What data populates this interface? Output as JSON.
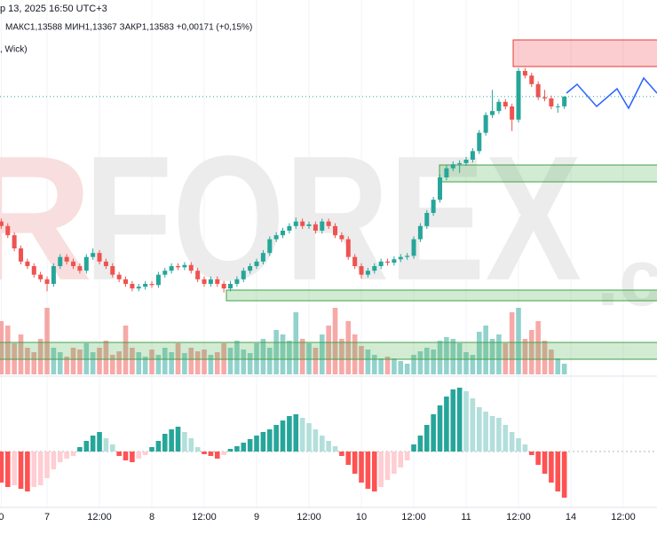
{
  "header": {
    "date": "р 13, 2025 16:50 UTC+3",
    "ohlc": "МАКС1,13588  МИН1,13367  ЗАКР1,13583  +0,00171 (+0,15%)",
    "style": ", Wick)"
  },
  "watermark": {
    "lead": "R",
    "main": "FOREX",
    "tail": ".c"
  },
  "chart_data": {
    "type": "candlestick",
    "up_color": "#26a69a",
    "down_color": "#ef5350",
    "categories": [
      "0",
      null,
      null,
      null,
      null,
      null,
      null,
      "7",
      null,
      null,
      null,
      null,
      null,
      null,
      null,
      "12:00",
      null,
      null,
      null,
      null,
      null,
      null,
      null,
      "8",
      null,
      null,
      null,
      null,
      null,
      null,
      null,
      "12:00",
      null,
      null,
      null,
      null,
      null,
      null,
      null,
      "9",
      null,
      null,
      null,
      null,
      null,
      null,
      null,
      "12:00",
      null,
      null,
      null,
      null,
      null,
      null,
      null,
      "10",
      null,
      null,
      null,
      null,
      null,
      null,
      null,
      "12:00",
      null,
      null,
      null,
      null,
      null,
      null,
      null,
      "11",
      null,
      null,
      null,
      null,
      null,
      null,
      null,
      "12:00",
      null,
      null,
      null,
      null,
      null,
      null,
      null,
      "14",
      null,
      null,
      null,
      null,
      null,
      null,
      null,
      "12:00"
    ],
    "open": [
      1.114,
      1.1132,
      1.1116,
      1.1093,
      1.107,
      1.1062,
      1.1047,
      1.1039,
      1.1031,
      1.1062,
      1.1078,
      1.107,
      1.1062,
      1.1054,
      1.1078,
      1.1085,
      1.107,
      1.1062,
      1.1047,
      1.1039,
      1.1031,
      1.1023,
      1.1026,
      1.1031,
      1.1029,
      1.1047,
      1.1054,
      1.1062,
      1.106,
      1.1064,
      1.1054,
      1.1039,
      1.1031,
      1.1039,
      1.1031,
      1.1023,
      1.1031,
      1.1039,
      1.1054,
      1.1062,
      1.107,
      1.1085,
      1.1109,
      1.1116,
      1.1124,
      1.1132,
      1.114,
      1.1132,
      1.1135,
      1.1124,
      1.114,
      1.1132,
      1.1116,
      1.1109,
      1.1078,
      1.1062,
      1.1047,
      1.1054,
      1.1062,
      1.107,
      1.1068,
      1.1074,
      1.1078,
      1.108,
      1.1109,
      1.1132,
      1.1155,
      1.1178,
      1.1217,
      1.1233,
      1.124,
      1.1242,
      1.1248,
      1.1263,
      1.1295,
      1.1326,
      1.1333,
      1.1349,
      1.1341,
      1.1318,
      1.1403,
      1.1395,
      1.138,
      1.1357,
      1.1355,
      1.1341,
      1.13412,
      null,
      null,
      null,
      null,
      null,
      null,
      null,
      null,
      null
    ],
    "high": [
      1.1145,
      1.1137,
      1.1121,
      1.1098,
      1.1075,
      1.1067,
      1.1052,
      1.1044,
      1.1067,
      1.1083,
      1.1083,
      1.1075,
      1.1067,
      1.1083,
      1.1093,
      1.109,
      1.1075,
      1.1067,
      1.1052,
      1.1044,
      1.1036,
      1.1031,
      1.1036,
      1.1036,
      1.1052,
      1.1059,
      1.1067,
      1.1067,
      1.1069,
      1.1069,
      1.1059,
      1.1044,
      1.1044,
      1.1044,
      1.1036,
      1.1036,
      1.1044,
      1.1059,
      1.1067,
      1.1075,
      1.109,
      1.1114,
      1.1121,
      1.1129,
      1.1137,
      1.1147,
      1.1145,
      1.114,
      1.114,
      1.1145,
      1.1145,
      1.1137,
      1.1121,
      1.1114,
      1.1083,
      1.1067,
      1.1059,
      1.1067,
      1.1075,
      1.1075,
      1.1079,
      1.1083,
      1.1085,
      1.1114,
      1.1137,
      1.116,
      1.1183,
      1.1222,
      1.1238,
      1.1245,
      1.1247,
      1.1253,
      1.1268,
      1.13,
      1.1331,
      1.137,
      1.1354,
      1.1354,
      1.1346,
      1.1408,
      1.1408,
      1.14,
      1.1385,
      1.137,
      1.136,
      1.1346,
      1.13588,
      null,
      null,
      null,
      null,
      null,
      null,
      null,
      null,
      null
    ],
    "low": [
      1.1127,
      1.1111,
      1.1088,
      1.1065,
      1.1057,
      1.1042,
      1.1034,
      1.1018,
      1.1026,
      1.1057,
      1.1065,
      1.1057,
      1.1049,
      1.1049,
      1.1073,
      1.1065,
      1.1057,
      1.1042,
      1.1034,
      1.1026,
      1.1018,
      1.1018,
      1.1021,
      1.1024,
      1.1024,
      1.1042,
      1.1049,
      1.1055,
      1.1055,
      1.1049,
      1.1034,
      1.1026,
      1.1026,
      1.1026,
      1.1016,
      1.1018,
      1.1026,
      1.1034,
      1.1049,
      1.1057,
      1.1065,
      1.108,
      1.1104,
      1.1111,
      1.1119,
      1.1127,
      1.1127,
      1.1127,
      1.1119,
      1.1119,
      1.1127,
      1.1111,
      1.1104,
      1.1073,
      1.1057,
      1.104,
      1.1042,
      1.1049,
      1.1057,
      1.1063,
      1.1063,
      1.1069,
      1.1073,
      1.1075,
      1.1104,
      1.1127,
      1.115,
      1.1173,
      1.1212,
      1.1228,
      1.1225,
      1.1237,
      1.1243,
      1.1258,
      1.129,
      1.1321,
      1.1328,
      1.1336,
      1.1298,
      1.1313,
      1.139,
      1.1375,
      1.1352,
      1.135,
      1.1336,
      1.133,
      1.13367,
      null,
      null,
      null,
      null,
      null,
      null,
      null,
      null,
      null
    ],
    "close": [
      1.1132,
      1.1116,
      1.1093,
      1.107,
      1.1062,
      1.1047,
      1.1039,
      1.1031,
      1.1062,
      1.1078,
      1.107,
      1.1062,
      1.1054,
      1.1078,
      1.1085,
      1.107,
      1.1062,
      1.1047,
      1.1039,
      1.1031,
      1.1023,
      1.1026,
      1.1031,
      1.1029,
      1.1047,
      1.1054,
      1.1062,
      1.106,
      1.1064,
      1.1054,
      1.1039,
      1.1031,
      1.1039,
      1.1031,
      1.1023,
      1.1031,
      1.1039,
      1.1054,
      1.1062,
      1.107,
      1.1085,
      1.1109,
      1.1116,
      1.1124,
      1.1132,
      1.114,
      1.1132,
      1.1135,
      1.1124,
      1.114,
      1.1132,
      1.1116,
      1.1109,
      1.1078,
      1.1062,
      1.1047,
      1.1054,
      1.1062,
      1.107,
      1.1068,
      1.1074,
      1.1078,
      1.108,
      1.1109,
      1.1132,
      1.1155,
      1.1178,
      1.1217,
      1.1233,
      1.124,
      1.1242,
      1.1248,
      1.1263,
      1.1295,
      1.1326,
      1.1333,
      1.1349,
      1.1341,
      1.1318,
      1.1403,
      1.1395,
      1.138,
      1.1357,
      1.1355,
      1.1341,
      1.13412,
      1.13583,
      null,
      null,
      null,
      null,
      null,
      null,
      null,
      null,
      null
    ],
    "ylim": [
      1.1,
      1.1465
    ],
    "volume": [
      60,
      55,
      35,
      45,
      30,
      25,
      40,
      75,
      30,
      25,
      20,
      30,
      28,
      35,
      25,
      30,
      38,
      22,
      26,
      55,
      30,
      25,
      20,
      28,
      22,
      30,
      25,
      35,
      24,
      30,
      26,
      28,
      22,
      25,
      35,
      30,
      38,
      28,
      24,
      35,
      40,
      30,
      50,
      45,
      38,
      70,
      40,
      35,
      30,
      45,
      55,
      75,
      40,
      60,
      45,
      32,
      28,
      22,
      18,
      20,
      18,
      15,
      12,
      22,
      26,
      30,
      28,
      38,
      42,
      40,
      35,
      25,
      22,
      48,
      55,
      40,
      45,
      35,
      70,
      75,
      40,
      50,
      60,
      38,
      28,
      18,
      12,
      null,
      null,
      null,
      null,
      null,
      null,
      null,
      null,
      null
    ],
    "volume_ylim": [
      0,
      80
    ],
    "volume_colors": {
      "up": "rgba(38,166,154,0.5)",
      "down": "rgba(239,83,80,0.5)"
    },
    "oscillator": [
      -35,
      -40,
      -38,
      -42,
      -45,
      -40,
      -38,
      -30,
      -20,
      -12,
      -8,
      -5,
      5,
      12,
      18,
      22,
      15,
      8,
      -5,
      -10,
      -12,
      -8,
      -4,
      5,
      12,
      20,
      25,
      28,
      22,
      15,
      5,
      -3,
      -5,
      -8,
      -4,
      3,
      6,
      10,
      14,
      18,
      22,
      25,
      30,
      35,
      40,
      42,
      38,
      32,
      25,
      18,
      12,
      6,
      -5,
      -15,
      -25,
      -35,
      -42,
      -45,
      -40,
      -32,
      -25,
      -18,
      -10,
      8,
      18,
      30,
      42,
      52,
      62,
      70,
      72,
      68,
      60,
      50,
      45,
      40,
      38,
      30,
      22,
      15,
      8,
      -4,
      -15,
      -25,
      -35,
      -45,
      -52,
      null,
      null,
      null,
      null,
      null,
      null,
      null,
      null,
      null
    ],
    "oscillator_ylim": [
      -60,
      75
    ],
    "oscillator_colors": {
      "up_rising": "#26a69a",
      "up_falling": "#b2dfdb",
      "down_falling": "#ff5252",
      "down_rising": "#ffcdd2"
    }
  }
}
